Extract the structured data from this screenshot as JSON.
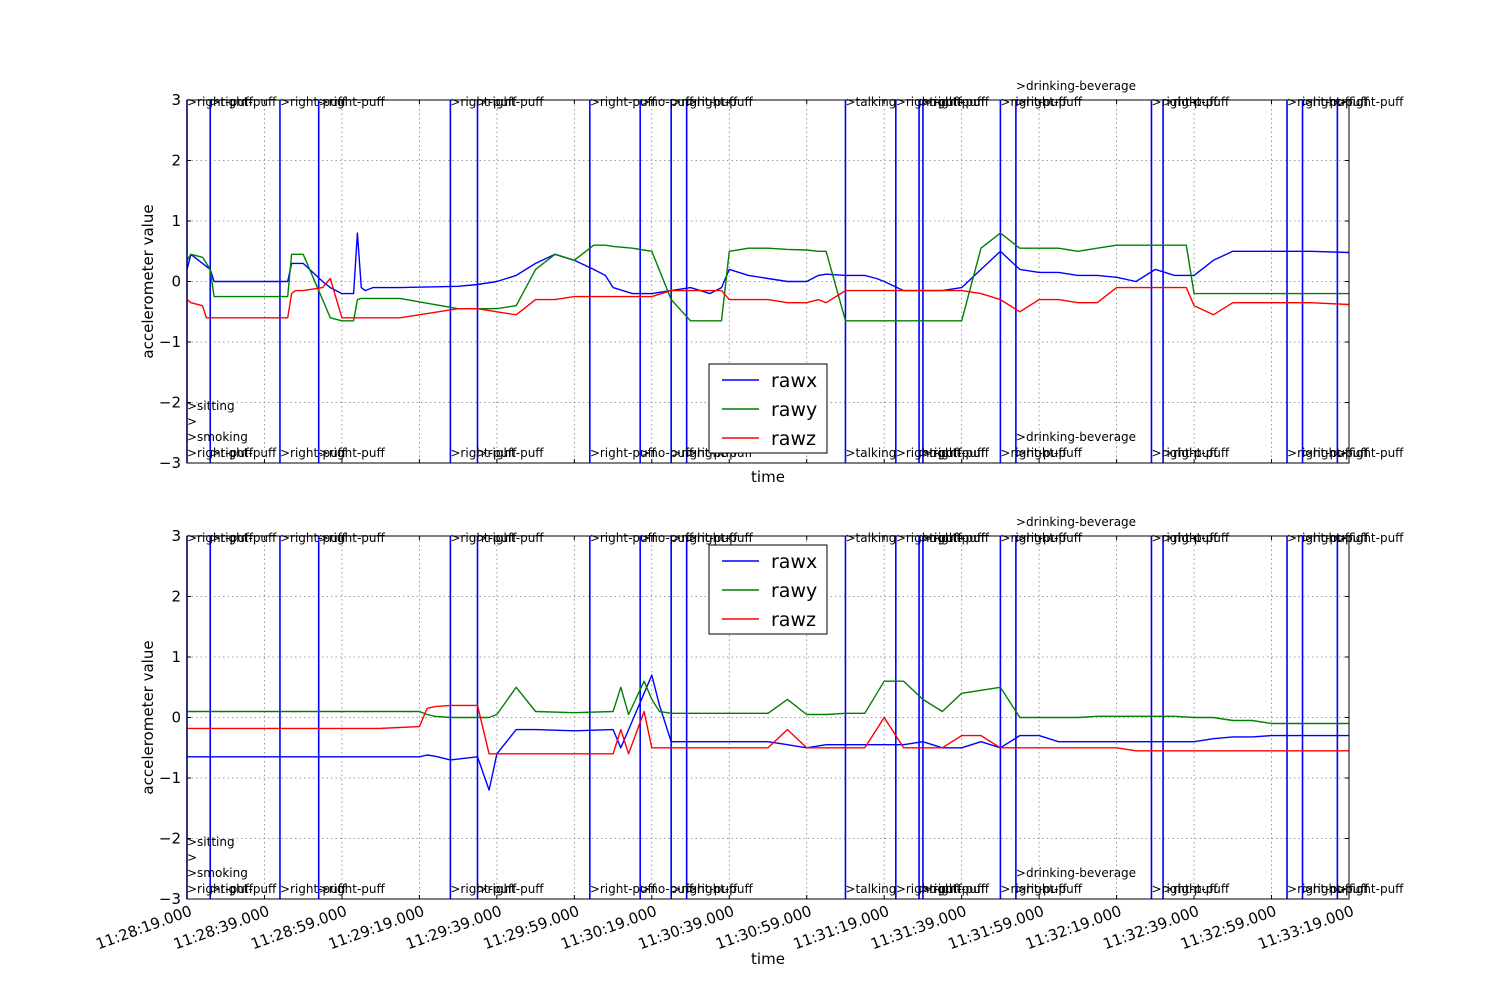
{
  "chart_data": [
    {
      "type": "line",
      "xlabel": "time",
      "ylabel": "accelerometer value",
      "ylim": [
        -3,
        3
      ],
      "yticks": [
        "3",
        "2",
        "1",
        "0",
        "−1",
        "−2",
        "−3"
      ],
      "x_range": [
        "11:28:19.000",
        "11:33:19.000"
      ],
      "grid": true,
      "legend_position": "lower-center",
      "legend": [
        "rawx",
        "rawy",
        "rawz"
      ],
      "colors": {
        "rawx": "#0000ff",
        "rawy": "#008000",
        "rawz": "#ff0000",
        "annotation": "#0000ff"
      },
      "annotations": [
        {
          "time": "11:28:19.000",
          "top": ">right-puff",
          "bottom": ">right-puff",
          "stack": [
            ">sitting",
            ">",
            ">smoking"
          ]
        },
        {
          "time": "11:28:25.000",
          "top": ">right-puff",
          "bottom": ">right-puff"
        },
        {
          "time": "11:28:43.000",
          "top": ">right-puff",
          "bottom": ">right-puff"
        },
        {
          "time": "11:28:53.000",
          "top": ">right-puff",
          "bottom": ">right-puff"
        },
        {
          "time": "11:29:27.000",
          "top": ">right-puff",
          "bottom": ">right-puff"
        },
        {
          "time": "11:29:34.000",
          "top": ">right-puff",
          "bottom": ">right-puff"
        },
        {
          "time": "11:30:03.000",
          "top": ">right-puff",
          "bottom": ">right-puff"
        },
        {
          "time": "11:30:16.000",
          "top": ">no-puff",
          "bottom": ">no-puff"
        },
        {
          "time": "11:30:24.000",
          "top": ">right-puff",
          "bottom": ">right-puff"
        },
        {
          "time": "11:30:28.000",
          "top": ">right-puff",
          "bottom": ">right-puff"
        },
        {
          "time": "11:31:09.000",
          "top": ">talking",
          "bottom": ">talking"
        },
        {
          "time": "11:31:22.000",
          "top": ">right-puff",
          "bottom": ">right-puff"
        },
        {
          "time": "11:31:28.000",
          "top": ">right-puff",
          "bottom": ">right-puff"
        },
        {
          "time": "11:31:29.000",
          "top": ">right-puff",
          "bottom": ">right-puff"
        },
        {
          "time": "11:31:49.000",
          "top": ">right-puff",
          "bottom": ">right-puff"
        },
        {
          "time": "11:31:53.000",
          "top": ">right-puff",
          "bottom": ">right-puff",
          "above": ">drinking-beverage",
          "lower": ">drinking-beverage"
        },
        {
          "time": "11:32:28.000",
          "top": ">right-puff",
          "bottom": ">right-puff"
        },
        {
          "time": "11:32:31.000",
          "top": ">right-puff",
          "bottom": ">right-puff"
        },
        {
          "time": "11:33:03.000",
          "top": ">right-puff",
          "bottom": ">right-puff"
        },
        {
          "time": "11:33:07.000",
          "top": ">right-puff",
          "bottom": ">right-puff"
        },
        {
          "time": "11:33:16.000",
          "top": ">right-puff",
          "bottom": ">right-puff"
        }
      ],
      "series": [
        {
          "name": "rawx",
          "x": [
            0,
            1,
            4,
            5,
            6,
            7,
            25,
            26,
            27,
            28,
            30,
            35,
            37,
            40,
            43,
            44,
            45,
            46,
            48,
            52,
            55,
            70,
            75,
            80,
            85,
            90,
            95,
            100,
            105,
            108,
            110,
            115,
            120,
            125,
            130,
            135,
            138,
            140,
            145,
            150,
            155,
            160,
            163,
            165,
            170,
            175,
            178,
            180,
            185,
            190,
            195,
            200,
            205,
            210,
            215,
            220,
            225,
            230,
            235,
            240,
            245,
            250,
            255,
            258,
            260,
            265,
            270,
            280,
            290,
            300
          ],
          "y": [
            0.2,
            0.45,
            0.3,
            0.25,
            0.2,
            0.0,
            0.0,
            0.0,
            0.3,
            0.3,
            0.3,
            0.0,
            -0.1,
            -0.2,
            -0.2,
            0.8,
            -0.1,
            -0.15,
            -0.1,
            -0.1,
            -0.1,
            -0.08,
            -0.05,
            0.0,
            0.1,
            0.3,
            0.45,
            0.35,
            0.2,
            0.1,
            -0.1,
            -0.2,
            -0.2,
            -0.15,
            -0.1,
            -0.2,
            -0.1,
            0.2,
            0.1,
            0.05,
            0.0,
            0.0,
            0.1,
            0.12,
            0.1,
            0.1,
            0.05,
            0.0,
            -0.15,
            -0.15,
            -0.15,
            -0.1,
            0.2,
            0.5,
            0.2,
            0.15,
            0.15,
            0.1,
            0.1,
            0.07,
            0.0,
            0.2,
            0.1,
            0.1,
            0.1,
            0.35,
            0.5,
            0.5,
            0.5,
            0.48
          ]
        },
        {
          "name": "rawy",
          "x": [
            0,
            1,
            4,
            5,
            6,
            7,
            25,
            26,
            27,
            28,
            30,
            35,
            37,
            40,
            43,
            44,
            45,
            46,
            48,
            52,
            55,
            70,
            75,
            80,
            85,
            90,
            95,
            100,
            105,
            108,
            110,
            115,
            120,
            125,
            130,
            135,
            138,
            140,
            145,
            150,
            155,
            160,
            163,
            165,
            170,
            175,
            178,
            180,
            185,
            190,
            195,
            200,
            205,
            210,
            215,
            220,
            225,
            230,
            235,
            240,
            245,
            250,
            255,
            258,
            260,
            265,
            270,
            280,
            290,
            300
          ],
          "y": [
            0.35,
            0.45,
            0.4,
            0.3,
            0.2,
            -0.25,
            -0.25,
            -0.25,
            0.45,
            0.45,
            0.45,
            -0.3,
            -0.6,
            -0.65,
            -0.65,
            -0.3,
            -0.28,
            -0.28,
            -0.28,
            -0.28,
            -0.28,
            -0.45,
            -0.45,
            -0.45,
            -0.4,
            0.2,
            0.45,
            0.35,
            0.6,
            0.6,
            0.58,
            0.55,
            0.5,
            -0.3,
            -0.65,
            -0.65,
            -0.65,
            0.5,
            0.55,
            0.55,
            0.53,
            0.52,
            0.5,
            0.5,
            -0.65,
            -0.65,
            -0.65,
            -0.65,
            -0.65,
            -0.65,
            -0.65,
            -0.65,
            0.55,
            0.8,
            0.55,
            0.55,
            0.55,
            0.5,
            0.55,
            0.6,
            0.6,
            0.6,
            0.6,
            0.6,
            -0.2,
            -0.2,
            -0.2,
            -0.2,
            -0.2,
            -0.2
          ]
        },
        {
          "name": "rawz",
          "x": [
            0,
            1,
            4,
            5,
            6,
            7,
            25,
            26,
            27,
            28,
            30,
            35,
            37,
            40,
            43,
            44,
            45,
            46,
            48,
            52,
            55,
            70,
            75,
            80,
            85,
            90,
            95,
            100,
            105,
            108,
            110,
            115,
            120,
            125,
            130,
            135,
            138,
            140,
            145,
            150,
            155,
            160,
            163,
            165,
            170,
            175,
            178,
            180,
            185,
            190,
            195,
            200,
            205,
            210,
            215,
            220,
            225,
            230,
            235,
            240,
            245,
            250,
            255,
            258,
            260,
            265,
            270,
            280,
            290,
            300
          ],
          "y": [
            -0.3,
            -0.35,
            -0.4,
            -0.6,
            -0.6,
            -0.6,
            -0.6,
            -0.6,
            -0.2,
            -0.15,
            -0.15,
            -0.1,
            0.05,
            -0.6,
            -0.6,
            -0.6,
            -0.6,
            -0.6,
            -0.6,
            -0.6,
            -0.6,
            -0.45,
            -0.45,
            -0.5,
            -0.55,
            -0.3,
            -0.3,
            -0.25,
            -0.25,
            -0.25,
            -0.25,
            -0.25,
            -0.25,
            -0.15,
            -0.15,
            -0.15,
            -0.15,
            -0.3,
            -0.3,
            -0.3,
            -0.35,
            -0.35,
            -0.3,
            -0.35,
            -0.15,
            -0.15,
            -0.15,
            -0.15,
            -0.15,
            -0.15,
            -0.15,
            -0.15,
            -0.2,
            -0.3,
            -0.5,
            -0.3,
            -0.3,
            -0.35,
            -0.35,
            -0.1,
            -0.1,
            -0.1,
            -0.1,
            -0.1,
            -0.4,
            -0.55,
            -0.35,
            -0.35,
            -0.35,
            -0.38
          ]
        }
      ]
    },
    {
      "type": "line",
      "xlabel": "time",
      "ylabel": "accelerometer value",
      "ylim": [
        -3,
        3
      ],
      "yticks": [
        "3",
        "2",
        "1",
        "0",
        "−1",
        "−2",
        "−3"
      ],
      "xticks": [
        "11:28:19.000",
        "11:28:39.000",
        "11:28:59.000",
        "11:29:19.000",
        "11:29:39.000",
        "11:29:59.000",
        "11:30:19.000",
        "11:30:39.000",
        "11:30:59.000",
        "11:31:19.000",
        "11:31:39.000",
        "11:31:59.000",
        "11:32:19.000",
        "11:32:39.000",
        "11:32:59.000",
        "11:33:19.000"
      ],
      "grid": true,
      "legend_position": "upper-center",
      "legend": [
        "rawx",
        "rawy",
        "rawz"
      ],
      "colors": {
        "rawx": "#0000ff",
        "rawy": "#008000",
        "rawz": "#ff0000",
        "annotation": "#0000ff"
      },
      "series": [
        {
          "name": "rawx",
          "x": [
            0,
            50,
            60,
            62,
            64,
            68,
            75,
            78,
            80,
            85,
            90,
            100,
            110,
            112,
            114,
            118,
            120,
            122,
            125,
            128,
            130,
            140,
            145,
            150,
            155,
            160,
            165,
            170,
            175,
            180,
            185,
            190,
            195,
            200,
            205,
            210,
            215,
            220,
            225,
            230,
            235,
            240,
            245,
            250,
            255,
            260,
            265,
            270,
            275,
            280,
            285,
            290,
            295,
            300
          ],
          "y": [
            -0.65,
            -0.65,
            -0.65,
            -0.62,
            -0.64,
            -0.7,
            -0.65,
            -1.2,
            -0.6,
            -0.2,
            -0.2,
            -0.22,
            -0.2,
            -0.5,
            -0.2,
            0.4,
            0.7,
            0.2,
            -0.4,
            -0.4,
            -0.4,
            -0.4,
            -0.4,
            -0.4,
            -0.45,
            -0.5,
            -0.45,
            -0.45,
            -0.45,
            -0.45,
            -0.45,
            -0.4,
            -0.5,
            -0.5,
            -0.4,
            -0.5,
            -0.3,
            -0.3,
            -0.4,
            -0.4,
            -0.4,
            -0.4,
            -0.4,
            -0.4,
            -0.4,
            -0.4,
            -0.35,
            -0.32,
            -0.32,
            -0.3,
            -0.3,
            -0.3,
            -0.3,
            -0.3
          ]
        },
        {
          "name": "rawy",
          "x": [
            0,
            50,
            60,
            62,
            64,
            68,
            75,
            78,
            80,
            85,
            90,
            100,
            110,
            112,
            114,
            118,
            120,
            122,
            125,
            128,
            130,
            140,
            145,
            150,
            155,
            160,
            165,
            170,
            175,
            180,
            185,
            190,
            195,
            200,
            205,
            210,
            215,
            220,
            225,
            230,
            235,
            240,
            245,
            250,
            255,
            260,
            265,
            270,
            275,
            280,
            285,
            290,
            295,
            300
          ],
          "y": [
            0.1,
            0.1,
            0.1,
            0.05,
            0.02,
            0.0,
            0.0,
            0.0,
            0.05,
            0.5,
            0.1,
            0.08,
            0.1,
            0.5,
            0.05,
            0.6,
            0.3,
            0.1,
            0.07,
            0.07,
            0.07,
            0.07,
            0.07,
            0.07,
            0.3,
            0.05,
            0.05,
            0.07,
            0.07,
            0.6,
            0.6,
            0.3,
            0.1,
            0.4,
            0.45,
            0.5,
            0.0,
            0.0,
            0.0,
            0.0,
            0.02,
            0.02,
            0.02,
            0.02,
            0.02,
            0.0,
            0.0,
            -0.05,
            -0.05,
            -0.1,
            -0.1,
            -0.1,
            -0.1,
            -0.1
          ]
        },
        {
          "name": "rawz",
          "x": [
            0,
            50,
            60,
            62,
            64,
            68,
            75,
            78,
            80,
            85,
            90,
            100,
            110,
            112,
            114,
            118,
            120,
            122,
            125,
            128,
            130,
            140,
            145,
            150,
            155,
            160,
            165,
            170,
            175,
            180,
            185,
            190,
            195,
            200,
            205,
            210,
            215,
            220,
            225,
            230,
            235,
            240,
            245,
            250,
            255,
            260,
            265,
            270,
            275,
            280,
            285,
            290,
            295,
            300
          ],
          "y": [
            -0.18,
            -0.18,
            -0.15,
            0.15,
            0.18,
            0.2,
            0.2,
            -0.6,
            -0.6,
            -0.6,
            -0.6,
            -0.6,
            -0.6,
            -0.2,
            -0.6,
            0.1,
            -0.5,
            -0.5,
            -0.5,
            -0.5,
            -0.5,
            -0.5,
            -0.5,
            -0.5,
            -0.2,
            -0.5,
            -0.5,
            -0.5,
            -0.5,
            0.0,
            -0.5,
            -0.5,
            -0.5,
            -0.3,
            -0.3,
            -0.5,
            -0.5,
            -0.5,
            -0.5,
            -0.5,
            -0.5,
            -0.5,
            -0.55,
            -0.55,
            -0.55,
            -0.55,
            -0.55,
            -0.55,
            -0.55,
            -0.55,
            -0.55,
            -0.55,
            -0.55,
            -0.55
          ]
        }
      ]
    }
  ]
}
